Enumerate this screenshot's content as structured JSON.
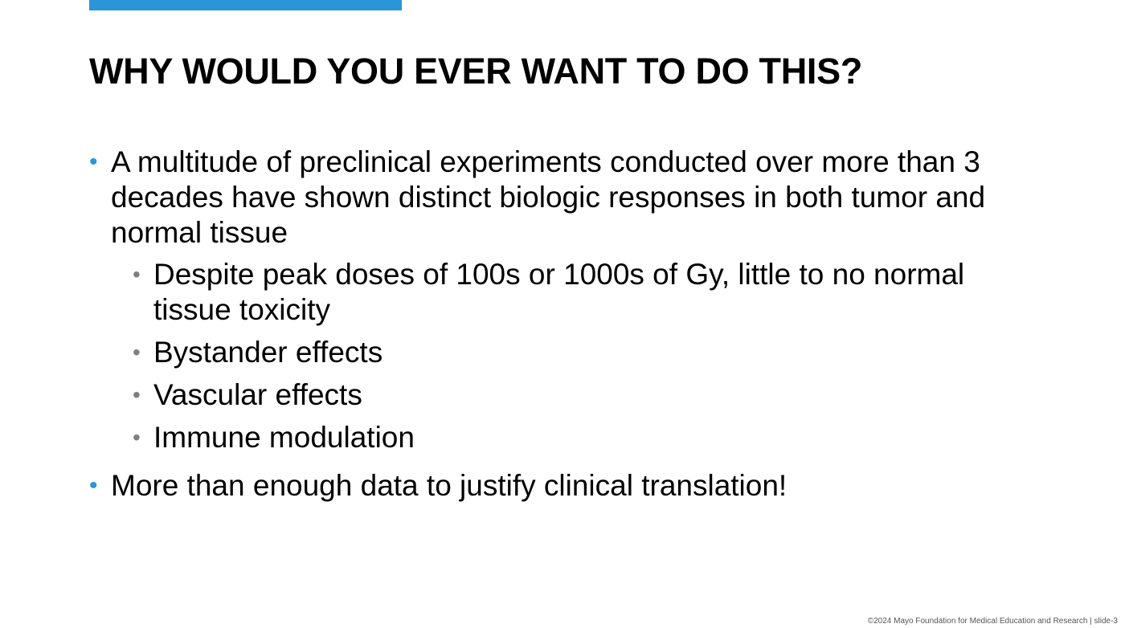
{
  "colors": {
    "accent": "#2a95d8",
    "sub_bullet": "#7f7f7f",
    "text": "#000000"
  },
  "title": "WHY WOULD YOU EVER WANT TO DO THIS?",
  "bullets": [
    {
      "text": "A multitude of preclinical experiments conducted over more than 3 decades have shown distinct biologic responses in both tumor and normal tissue",
      "sub_bullets": [
        "Despite peak doses of 100s or 1000s of Gy, little to no normal tissue toxicity",
        "Bystander effects",
        "Vascular effects",
        "Immune modulation"
      ]
    },
    {
      "text": "More than enough data to justify clinical translation!"
    }
  ],
  "footer": "©2024 Mayo Foundation for Medical Education and Research  |  slide-3"
}
